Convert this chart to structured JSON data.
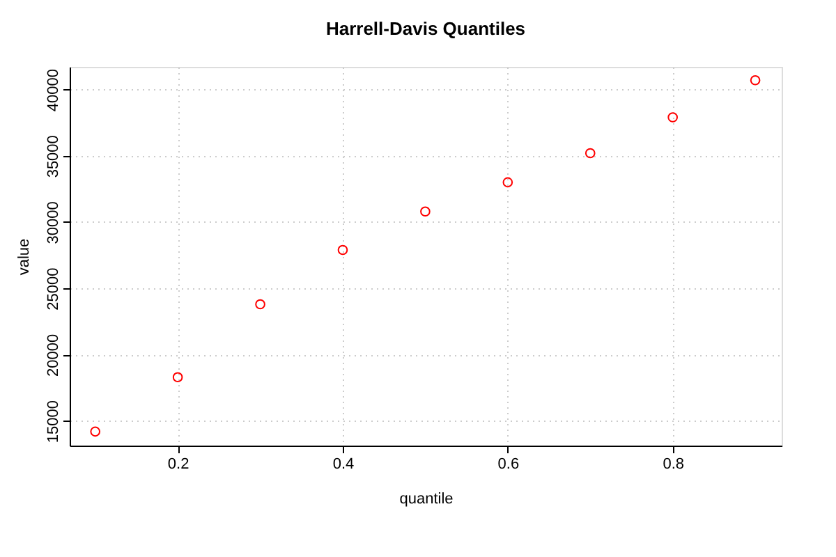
{
  "chart_data": {
    "type": "scatter",
    "title": "Harrell-Davis Quantiles",
    "xlabel": "quantile",
    "ylabel": "value",
    "x": [
      0.1,
      0.2,
      0.3,
      0.4,
      0.5,
      0.6,
      0.7,
      0.8,
      0.9
    ],
    "series": [
      {
        "color": "#ff0000",
        "values": [
          14200,
          18300,
          23800,
          27900,
          30800,
          33000,
          35200,
          37900,
          40700
        ]
      }
    ],
    "xlim": [
      0.069,
      0.932
    ],
    "ylim": [
      13140,
      41710
    ],
    "xticks": [
      0.2,
      0.4,
      0.6,
      0.8
    ],
    "yticks": [
      15000,
      20000,
      25000,
      30000,
      35000,
      40000
    ],
    "grid": true,
    "marker": "circle"
  }
}
